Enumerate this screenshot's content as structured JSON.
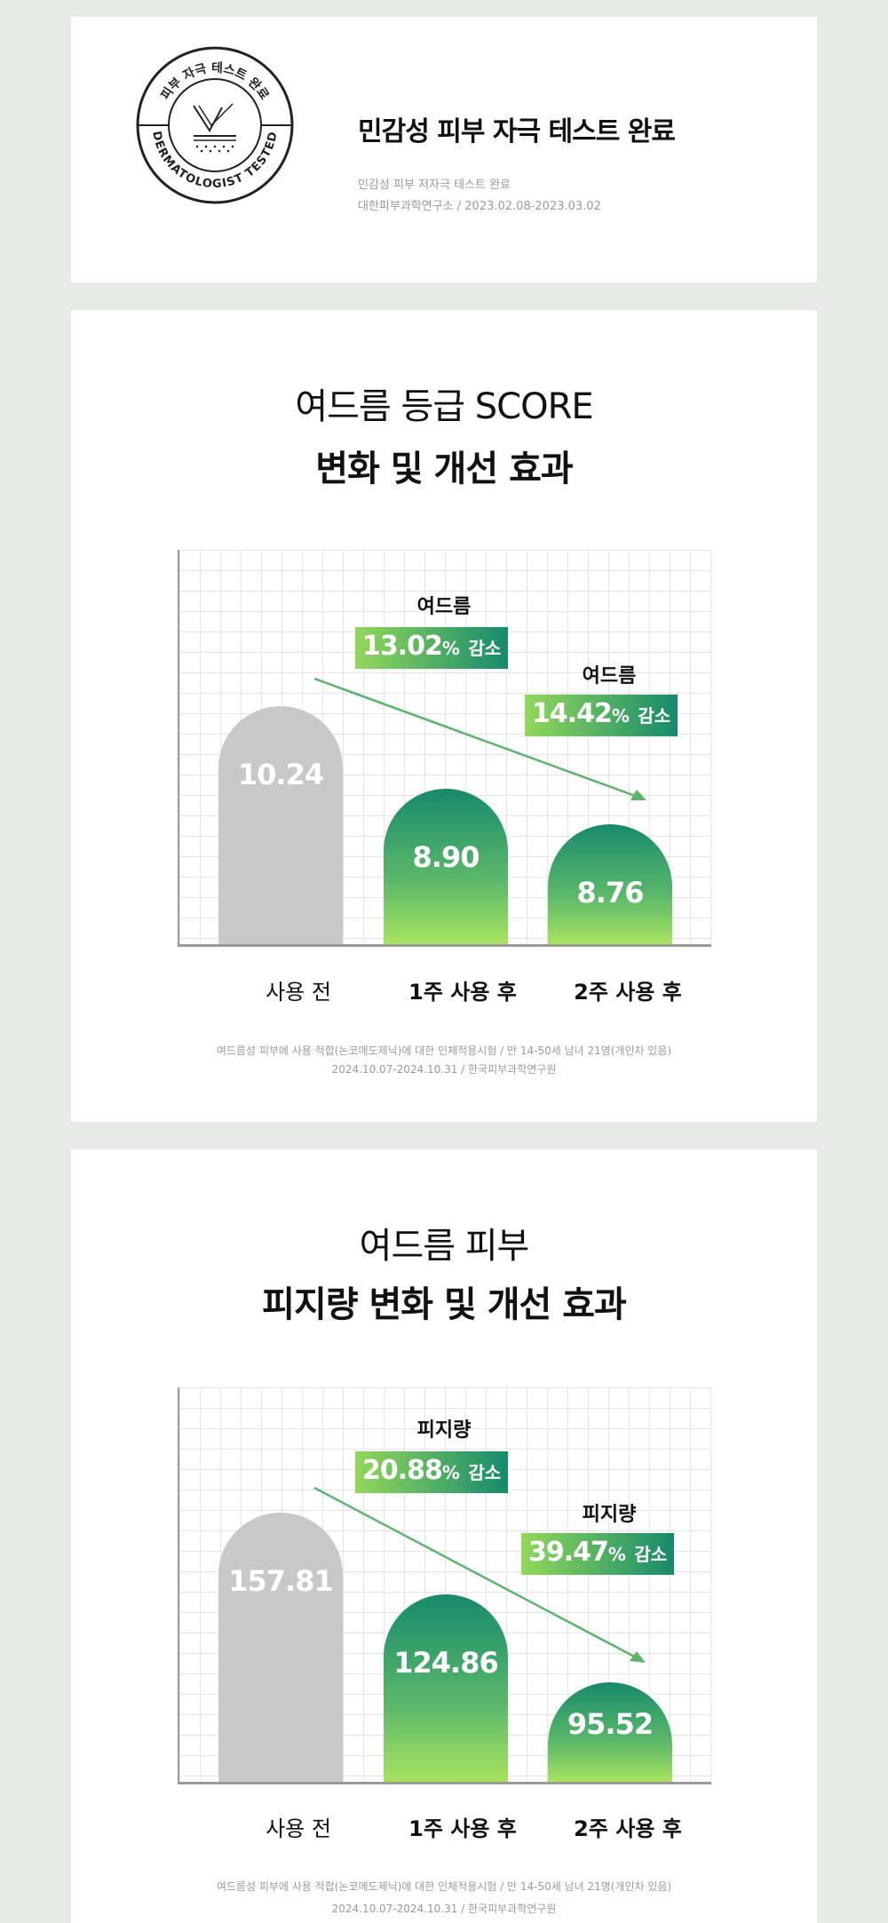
{
  "cert": {
    "seal_text_top": "피부 자극 테스트 완료",
    "seal_text_bottom": "DERMATOLOGIST TESTED",
    "title": "민감성 피부 자극 테스트 완료",
    "sub1": "민감성 피부 저자극 테스트 완료",
    "sub2": "대한피부과학연구소 / 2023.02.08-2023.03.02"
  },
  "colors": {
    "gray_bar": "#c8c8c8",
    "green_dark": "#178a6b",
    "green_light": "#a8e35f",
    "arrow": "#5ab56a"
  },
  "chart_data": [
    {
      "type": "bar",
      "title_line1": "여드름 등급 SCORE",
      "title_line2": "변화 및 개선 효과",
      "categories": [
        "사용 전",
        "1주 사용 후",
        "2주 사용 후"
      ],
      "values": [
        10.24,
        8.9,
        8.76
      ],
      "value_labels": [
        "10.24",
        "8.90",
        "8.76"
      ],
      "annotations": [
        {
          "label": "여드름",
          "value": "13.02",
          "unit": "%",
          "suffix": "감소"
        },
        {
          "label": "여드름",
          "value": "14.42",
          "unit": "%",
          "suffix": "감소"
        }
      ],
      "grid": true,
      "footnote1": "여드름성 피부에 사용 적합(논코메도제닉)에 대한 인체적용시험 / 만 14-50세 남녀 21명(개인차 있음)",
      "footnote2": "2024.10.07-2024.10.31 / 한국피부과학연구원"
    },
    {
      "type": "bar",
      "title_line1": "여드름 피부",
      "title_line2": "피지량 변화 및 개선 효과",
      "categories": [
        "사용 전",
        "1주 사용 후",
        "2주 사용 후"
      ],
      "values": [
        157.81,
        124.86,
        95.52
      ],
      "value_labels": [
        "157.81",
        "124.86",
        "95.52"
      ],
      "annotations": [
        {
          "label": "피지량",
          "value": "20.88",
          "unit": "%",
          "suffix": "감소"
        },
        {
          "label": "피지량",
          "value": "39.47",
          "unit": "%",
          "suffix": "감소"
        }
      ],
      "grid": true,
      "footnote1": "여드름성 피부에 사용 적합(논코메도제닉)에 대한 인체적용시험 / 만 14-50세 남녀 21명(개인차 있음)",
      "footnote2": "2024.10.07-2024.10.31 / 한국피부과학연구원"
    }
  ]
}
